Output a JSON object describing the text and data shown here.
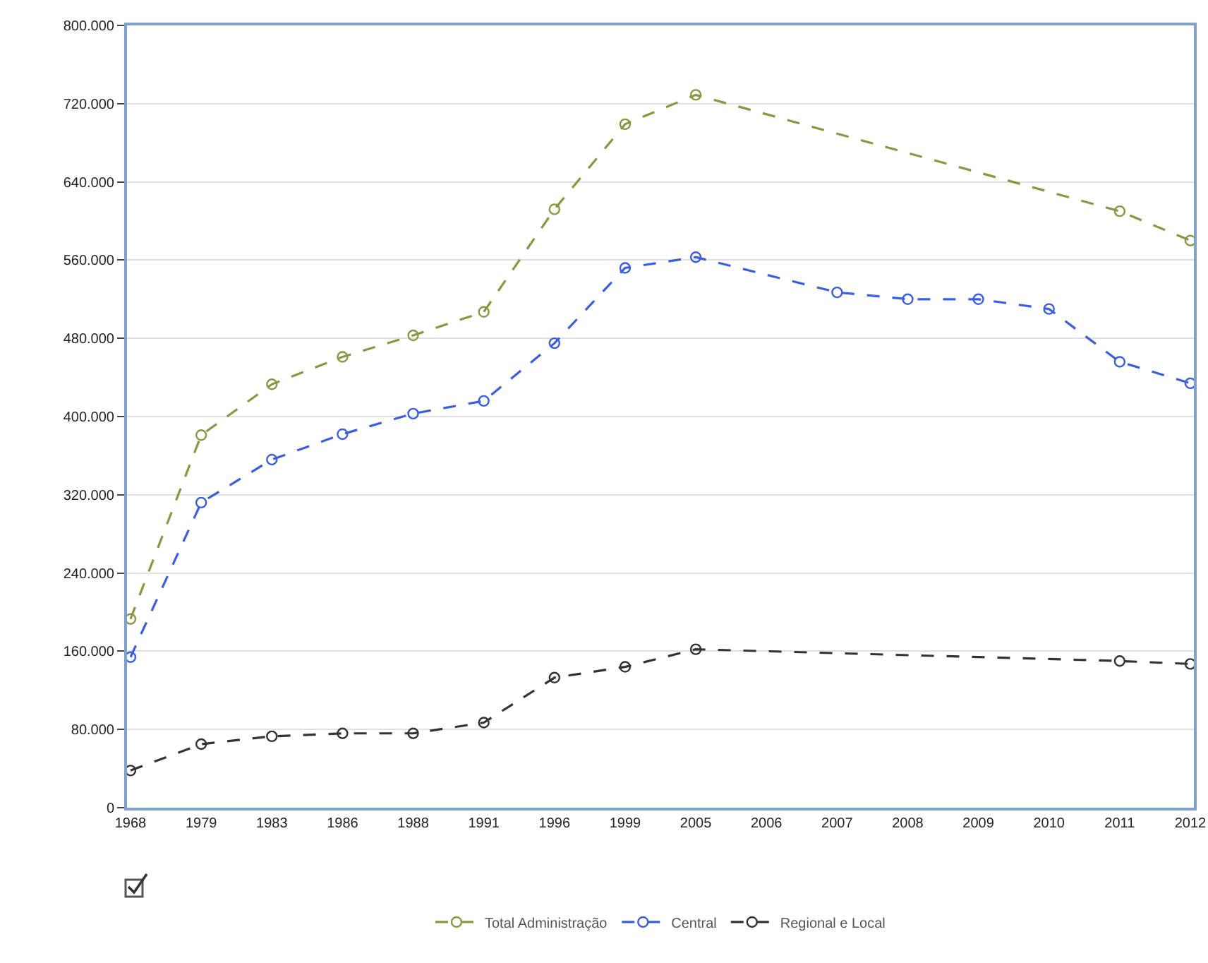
{
  "chart_data": {
    "type": "line",
    "categories": [
      "1968",
      "1979",
      "1983",
      "1986",
      "1988",
      "1991",
      "1996",
      "1999",
      "2005",
      "2006",
      "2007",
      "2008",
      "2009",
      "2010",
      "2011",
      "2012"
    ],
    "series": [
      {
        "name": "Total Administração",
        "color": "#8c9640",
        "values": [
          193000,
          381000,
          433000,
          461000,
          483000,
          507000,
          612000,
          699000,
          729000,
          null,
          null,
          null,
          null,
          null,
          610000,
          580000
        ]
      },
      {
        "name": "Central",
        "color": "#3a5ee0",
        "values": [
          154000,
          312000,
          356000,
          382000,
          403000,
          416000,
          475000,
          552000,
          563000,
          null,
          527000,
          520000,
          520000,
          510000,
          456000,
          434000
        ]
      },
      {
        "name": "Regional e Local",
        "color": "#333333",
        "values": [
          38000,
          65000,
          73000,
          76000,
          76000,
          87000,
          133000,
          144000,
          162000,
          null,
          null,
          null,
          null,
          null,
          150000,
          147000
        ]
      }
    ],
    "ylim": [
      0,
      800000
    ],
    "yticks": [
      {
        "value": 0,
        "label": "0"
      },
      {
        "value": 80000,
        "label": "80.000"
      },
      {
        "value": 160000,
        "label": "160.000"
      },
      {
        "value": 240000,
        "label": "240.000"
      },
      {
        "value": 320000,
        "label": "320.000"
      },
      {
        "value": 400000,
        "label": "400.000"
      },
      {
        "value": 480000,
        "label": "480.000"
      },
      {
        "value": 560000,
        "label": "560.000"
      },
      {
        "value": 640000,
        "label": "640.000"
      },
      {
        "value": 720000,
        "label": "720.000"
      },
      {
        "value": 800000,
        "label": "800.000"
      }
    ],
    "grid": "y",
    "legend": "bottom",
    "marker": "circle",
    "line_style": "dashed"
  }
}
